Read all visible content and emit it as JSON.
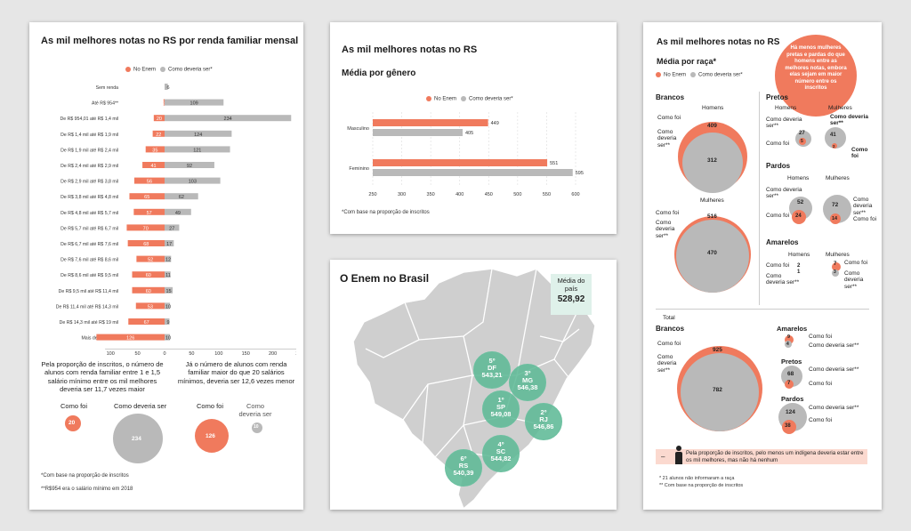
{
  "colors": {
    "enem": "#f07a5d",
    "deveria": "#b9b9b9",
    "map": "#cfcfcf",
    "ring": "#7fc9ae",
    "callout": "#f07a5d",
    "mapbox": "#dff1ea"
  },
  "legend": {
    "enem": "No Enem",
    "deveria": "Como deveria ser*"
  },
  "income": {
    "title": "As mil melhores notas no RS por renda familiar mensal",
    "axis_ticks": [
      "100",
      "50",
      "0",
      "50",
      "100",
      "150",
      "200",
      "250"
    ],
    "note_left": "Pela proporção de inscritos, o número de alunos com renda familiar entre 1 e 1,5 salário mínimo entre os mil melhores deveria ser 11,7 vezes maior",
    "note_right": "Já o número de alunos com renda familiar maior do que 20 salários mínimos, deveria ser 12,6 vezes menor",
    "bubble_left": {
      "l1": "Como foi",
      "l2": "Como deveria ser",
      "v1": "20",
      "v2": "234"
    },
    "bubble_right": {
      "l1": "Como foi",
      "l2": "Como deveria ser",
      "v1": "126",
      "v2": "10"
    },
    "foot1": "*Com base na proporção de inscritos",
    "foot2": "**R$954 era o salário mínimo em 2018"
  },
  "gender": {
    "title": "As mil melhores notas no RS",
    "subtitle": "Média por gênero",
    "foot": "*Com base na proporção de inscritos"
  },
  "map": {
    "title": "O Enem no Brasil",
    "avg_label": "Média do país",
    "avg_value": "528,92",
    "states": [
      {
        "rank": "5º",
        "uf": "DF",
        "score": "543,21"
      },
      {
        "rank": "3º",
        "uf": "MG",
        "score": "546,38"
      },
      {
        "rank": "1º",
        "uf": "SP",
        "score": "549,08"
      },
      {
        "rank": "2º",
        "uf": "RJ",
        "score": "546,86"
      },
      {
        "rank": "4º",
        "uf": "SC",
        "score": "544,82"
      },
      {
        "rank": "6º",
        "uf": "RS",
        "score": "540,39"
      }
    ]
  },
  "race": {
    "title": "As mil melhores notas no RS",
    "subtitle": "Média por raça*",
    "callout": "Há menos mulheres pretas e pardas do que homens entre as melhores notas, embora elas sejam em maior número entre os inscritos",
    "homens": "Homens",
    "mulheres": "Mulheres",
    "total": "Total",
    "como_foi": "Como foi",
    "como_deveria": "Como deveria ser**",
    "groups": {
      "brancos": "Brancos",
      "pretos": "Pretos",
      "pardos": "Pardos",
      "amarelos": "Amarelos"
    },
    "values": {
      "brancos_h": [
        "409",
        "312"
      ],
      "brancos_m": [
        "516",
        "470"
      ],
      "pretos_h": [
        "5",
        "27"
      ],
      "pretos_m": [
        "2",
        "41"
      ],
      "pardos_h": [
        "24",
        "52"
      ],
      "pardos_m": [
        "14",
        "72"
      ],
      "amarelos_h": [
        "2",
        "1"
      ],
      "amarelos_m": [
        "7",
        "3"
      ],
      "total_brancos": [
        "925",
        "782"
      ],
      "total_amarelos": [
        "9",
        "4"
      ],
      "total_pretos": [
        "7",
        "68"
      ],
      "total_pardos": [
        "38",
        "124"
      ]
    },
    "indigena": "Pela proporção de inscritos, pelo menos um indígena deveria estar entre os mil melhores, mas não há nenhum",
    "foot1": "* 21 alunos não informaram a raça",
    "foot2": "** Com base na proporção de inscritos"
  },
  "chart_data": [
    {
      "type": "bar",
      "title": "As mil melhores notas no RS por renda familiar mensal",
      "categories": [
        "Sem renda",
        "Até R$ 954**",
        "De R$ 954,01 até R$ 1,4 mil",
        "De R$ 1,4 mil até R$ 1,9 mil",
        "De R$ 1,9 mil até R$ 2,4 mil",
        "De R$ 2,4 mil até R$ 2,9 mil",
        "De R$ 2,9 mil até R$ 3,8 mil",
        "De R$ 3,8 mil até R$ 4,8 mil",
        "De R$ 4,8 mil até R$ 5,7 mil",
        "De R$ 5,7 mil até R$ 6,7 mil",
        "De R$ 6,7 mil até R$ 7,6 mil",
        "De R$ 7,6 mil até R$ 8,6 mil",
        "De R$ 8,6 mil até R$ 9,5 mil",
        "De R$ 9,5 mil até R$ 11,4 mil",
        "De R$ 11,4 mil até R$ 14,3 mil",
        "De R$ 14,3 mil até R$ 19 mil",
        "Mais de R$ 19 mil"
      ],
      "series": [
        {
          "name": "No Enem",
          "values": [
            0,
            2,
            20,
            22,
            35,
            41,
            56,
            65,
            57,
            70,
            68,
            52,
            60,
            60,
            53,
            67,
            126
          ]
        },
        {
          "name": "Como deveria ser*",
          "values": [
            6,
            109,
            234,
            124,
            121,
            92,
            103,
            62,
            49,
            27,
            17,
            12,
            11,
            15,
            10,
            9,
            10
          ]
        }
      ]
    },
    {
      "type": "bar",
      "title": "As mil melhores notas no RS",
      "subtitle": "Média por gênero",
      "categories": [
        "Masculino",
        "Feminino"
      ],
      "xlim": [
        250,
        600
      ],
      "x_ticks": [
        "250",
        "300",
        "350",
        "400",
        "450",
        "500",
        "550",
        "600"
      ],
      "series": [
        {
          "name": "No Enem",
          "values": [
            449,
            551
          ]
        },
        {
          "name": "Como deveria ser*",
          "values": [
            405,
            595
          ]
        }
      ]
    }
  ]
}
